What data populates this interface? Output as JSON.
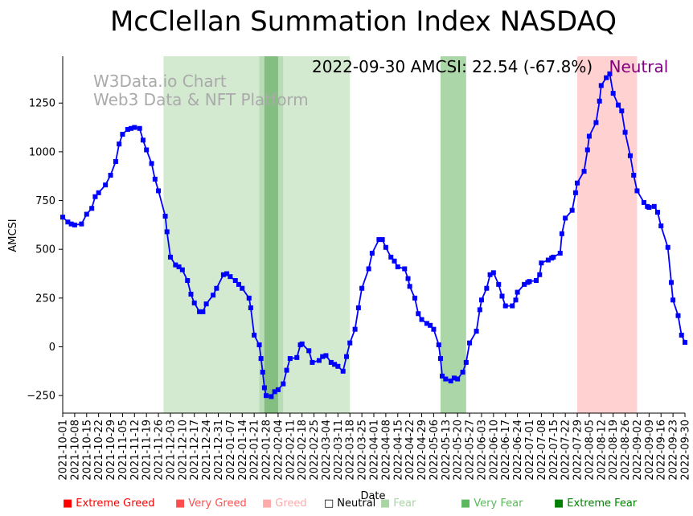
{
  "chart_data": {
    "type": "line",
    "title": "McClellan Summation Index NASDAQ",
    "xlabel": "Date",
    "ylabel": "AMCSI",
    "ylim": [
      -340,
      1490
    ],
    "yticks": [
      -250,
      0,
      250,
      500,
      750,
      1000,
      1250
    ],
    "x_start": "2021-10-01",
    "x_end": "2022-09-30",
    "x_ticks": [
      "2021-10-01",
      "2021-10-08",
      "2021-10-15",
      "2021-10-22",
      "2021-10-29",
      "2021-11-05",
      "2021-11-12",
      "2021-11-19",
      "2021-11-26",
      "2021-12-03",
      "2021-12-10",
      "2021-12-17",
      "2021-12-24",
      "2021-12-31",
      "2022-01-07",
      "2022-01-14",
      "2022-01-21",
      "2022-01-28",
      "2022-02-04",
      "2022-02-11",
      "2022-02-18",
      "2022-02-25",
      "2022-03-04",
      "2022-03-11",
      "2022-03-18",
      "2022-03-25",
      "2022-04-01",
      "2022-04-08",
      "2022-04-15",
      "2022-04-22",
      "2022-04-29",
      "2022-05-06",
      "2022-05-13",
      "2022-05-20",
      "2022-05-27",
      "2022-06-03",
      "2022-06-10",
      "2022-06-17",
      "2022-06-24",
      "2022-07-01",
      "2022-07-08",
      "2022-07-15",
      "2022-07-22",
      "2022-07-29",
      "2022-08-05",
      "2022-08-12",
      "2022-08-19",
      "2022-08-26",
      "2022-09-02",
      "2022-09-09",
      "2022-09-16",
      "2022-09-23",
      "2022-09-30"
    ],
    "series": [
      {
        "name": "AMCSI",
        "color": "#0000ff",
        "points": [
          [
            "2021-10-01",
            665
          ],
          [
            "2021-10-04",
            640
          ],
          [
            "2021-10-06",
            630
          ],
          [
            "2021-10-08",
            625
          ],
          [
            "2021-10-12",
            630
          ],
          [
            "2021-10-15",
            680
          ],
          [
            "2021-10-18",
            710
          ],
          [
            "2021-10-20",
            770
          ],
          [
            "2021-10-22",
            790
          ],
          [
            "2021-10-26",
            830
          ],
          [
            "2021-10-29",
            880
          ],
          [
            "2021-11-01",
            950
          ],
          [
            "2021-11-03",
            1040
          ],
          [
            "2021-11-05",
            1090
          ],
          [
            "2021-11-08",
            1115
          ],
          [
            "2021-11-10",
            1120
          ],
          [
            "2021-11-12",
            1125
          ],
          [
            "2021-11-15",
            1120
          ],
          [
            "2021-11-17",
            1060
          ],
          [
            "2021-11-19",
            1010
          ],
          [
            "2021-11-22",
            940
          ],
          [
            "2021-11-24",
            860
          ],
          [
            "2021-11-26",
            800
          ],
          [
            "2021-11-30",
            670
          ],
          [
            "2021-12-01",
            590
          ],
          [
            "2021-12-03",
            460
          ],
          [
            "2021-12-06",
            420
          ],
          [
            "2021-12-08",
            410
          ],
          [
            "2021-12-10",
            395
          ],
          [
            "2021-12-13",
            340
          ],
          [
            "2021-12-15",
            270
          ],
          [
            "2021-12-17",
            225
          ],
          [
            "2021-12-20",
            180
          ],
          [
            "2021-12-22",
            180
          ],
          [
            "2021-12-24",
            220
          ],
          [
            "2021-12-28",
            265
          ],
          [
            "2021-12-30",
            300
          ],
          [
            "2022-01-03",
            370
          ],
          [
            "2022-01-05",
            375
          ],
          [
            "2022-01-07",
            360
          ],
          [
            "2022-01-10",
            340
          ],
          [
            "2022-01-12",
            320
          ],
          [
            "2022-01-14",
            300
          ],
          [
            "2022-01-18",
            250
          ],
          [
            "2022-01-19",
            200
          ],
          [
            "2022-01-21",
            60
          ],
          [
            "2022-01-24",
            10
          ],
          [
            "2022-01-25",
            -60
          ],
          [
            "2022-01-26",
            -130
          ],
          [
            "2022-01-27",
            -210
          ],
          [
            "2022-01-28",
            -250
          ],
          [
            "2022-01-31",
            -255
          ],
          [
            "2022-02-02",
            -230
          ],
          [
            "2022-02-04",
            -220
          ],
          [
            "2022-02-07",
            -190
          ],
          [
            "2022-02-09",
            -120
          ],
          [
            "2022-02-11",
            -60
          ],
          [
            "2022-02-15",
            -55
          ],
          [
            "2022-02-17",
            10
          ],
          [
            "2022-02-18",
            15
          ],
          [
            "2022-02-22",
            -20
          ],
          [
            "2022-02-24",
            -80
          ],
          [
            "2022-02-28",
            -70
          ],
          [
            "2022-03-02",
            -50
          ],
          [
            "2022-03-04",
            -45
          ],
          [
            "2022-03-07",
            -80
          ],
          [
            "2022-03-09",
            -90
          ],
          [
            "2022-03-11",
            -100
          ],
          [
            "2022-03-14",
            -125
          ],
          [
            "2022-03-16",
            -50
          ],
          [
            "2022-03-18",
            20
          ],
          [
            "2022-03-21",
            90
          ],
          [
            "2022-03-23",
            200
          ],
          [
            "2022-03-25",
            300
          ],
          [
            "2022-03-29",
            400
          ],
          [
            "2022-03-31",
            480
          ],
          [
            "2022-04-04",
            550
          ],
          [
            "2022-04-06",
            550
          ],
          [
            "2022-04-08",
            510
          ],
          [
            "2022-04-11",
            460
          ],
          [
            "2022-04-13",
            440
          ],
          [
            "2022-04-15",
            410
          ],
          [
            "2022-04-19",
            400
          ],
          [
            "2022-04-21",
            350
          ],
          [
            "2022-04-22",
            310
          ],
          [
            "2022-04-25",
            250
          ],
          [
            "2022-04-27",
            170
          ],
          [
            "2022-04-29",
            140
          ],
          [
            "2022-05-02",
            120
          ],
          [
            "2022-05-04",
            110
          ],
          [
            "2022-05-06",
            90
          ],
          [
            "2022-05-09",
            10
          ],
          [
            "2022-05-10",
            -60
          ],
          [
            "2022-05-11",
            -150
          ],
          [
            "2022-05-13",
            -165
          ],
          [
            "2022-05-16",
            -175
          ],
          [
            "2022-05-18",
            -160
          ],
          [
            "2022-05-20",
            -165
          ],
          [
            "2022-05-23",
            -130
          ],
          [
            "2022-05-25",
            -80
          ],
          [
            "2022-05-27",
            20
          ],
          [
            "2022-05-31",
            80
          ],
          [
            "2022-06-02",
            190
          ],
          [
            "2022-06-03",
            240
          ],
          [
            "2022-06-06",
            300
          ],
          [
            "2022-06-08",
            370
          ],
          [
            "2022-06-10",
            380
          ],
          [
            "2022-06-13",
            320
          ],
          [
            "2022-06-15",
            260
          ],
          [
            "2022-06-17",
            210
          ],
          [
            "2022-06-21",
            210
          ],
          [
            "2022-06-23",
            240
          ],
          [
            "2022-06-24",
            280
          ],
          [
            "2022-06-28",
            320
          ],
          [
            "2022-06-30",
            330
          ],
          [
            "2022-07-01",
            335
          ],
          [
            "2022-07-05",
            340
          ],
          [
            "2022-07-07",
            370
          ],
          [
            "2022-07-08",
            430
          ],
          [
            "2022-07-12",
            445
          ],
          [
            "2022-07-14",
            455
          ],
          [
            "2022-07-15",
            460
          ],
          [
            "2022-07-19",
            480
          ],
          [
            "2022-07-20",
            580
          ],
          [
            "2022-07-22",
            660
          ],
          [
            "2022-07-26",
            700
          ],
          [
            "2022-07-28",
            790
          ],
          [
            "2022-07-29",
            840
          ],
          [
            "2022-08-02",
            900
          ],
          [
            "2022-08-04",
            1010
          ],
          [
            "2022-08-05",
            1080
          ],
          [
            "2022-08-09",
            1150
          ],
          [
            "2022-08-11",
            1260
          ],
          [
            "2022-08-12",
            1340
          ],
          [
            "2022-08-15",
            1380
          ],
          [
            "2022-08-17",
            1400
          ],
          [
            "2022-08-19",
            1300
          ],
          [
            "2022-08-22",
            1240
          ],
          [
            "2022-08-24",
            1210
          ],
          [
            "2022-08-26",
            1100
          ],
          [
            "2022-08-29",
            980
          ],
          [
            "2022-08-31",
            880
          ],
          [
            "2022-09-02",
            800
          ],
          [
            "2022-09-06",
            740
          ],
          [
            "2022-09-08",
            720
          ],
          [
            "2022-09-09",
            715
          ],
          [
            "2022-09-12",
            720
          ],
          [
            "2022-09-14",
            690
          ],
          [
            "2022-09-16",
            620
          ],
          [
            "2022-09-20",
            510
          ],
          [
            "2022-09-22",
            330
          ],
          [
            "2022-09-23",
            240
          ],
          [
            "2022-09-26",
            160
          ],
          [
            "2022-09-28",
            60
          ],
          [
            "2022-09-30",
            23
          ]
        ]
      }
    ],
    "shaded_regions": [
      {
        "start": "2021-11-29",
        "end": "2022-01-24",
        "zone": "fear",
        "color": "#a8d5a4",
        "opacity": 0.5
      },
      {
        "start": "2022-01-24",
        "end": "2022-02-07",
        "zone": "very-fear",
        "color": "#7ec07a",
        "opacity": 0.55
      },
      {
        "start": "2022-01-27",
        "end": "2022-02-04",
        "zone": "extreme-fear",
        "color": "#5aa856",
        "opacity": 0.55
      },
      {
        "start": "2022-02-07",
        "end": "2022-03-18",
        "zone": "fear",
        "color": "#a8d5a4",
        "opacity": 0.5
      },
      {
        "start": "2022-05-10",
        "end": "2022-05-25",
        "zone": "very-fear",
        "color": "#7ec07a",
        "opacity": 0.65
      },
      {
        "start": "2022-07-29",
        "end": "2022-09-02",
        "zone": "very-greed",
        "color": "#ffb3b3",
        "opacity": 0.6
      }
    ]
  },
  "status": {
    "date_value": "2022-09-30 AMCSI: 22.54 (-67.8%)",
    "label": "Neutral",
    "label_color": "#800080"
  },
  "watermark": {
    "line1": "W3Data.io Chart",
    "line2": "Web3 Data & NFT Platform"
  },
  "legend": [
    {
      "symbol": "■",
      "label": "Extreme Greed",
      "color": "#ff0000"
    },
    {
      "symbol": "■",
      "label": "Very Greed",
      "color": "#ff4d4d"
    },
    {
      "symbol": "■",
      "label": "Greed",
      "color": "#ffaaaa"
    },
    {
      "symbol": "□",
      "label": "Neutral",
      "color": "#000000"
    },
    {
      "symbol": "■",
      "label": "Fear",
      "color": "#a8d5a4"
    },
    {
      "symbol": "■",
      "label": "Very Fear",
      "color": "#5cb85c"
    },
    {
      "symbol": "■",
      "label": "Extreme Fear",
      "color": "#008000"
    }
  ]
}
